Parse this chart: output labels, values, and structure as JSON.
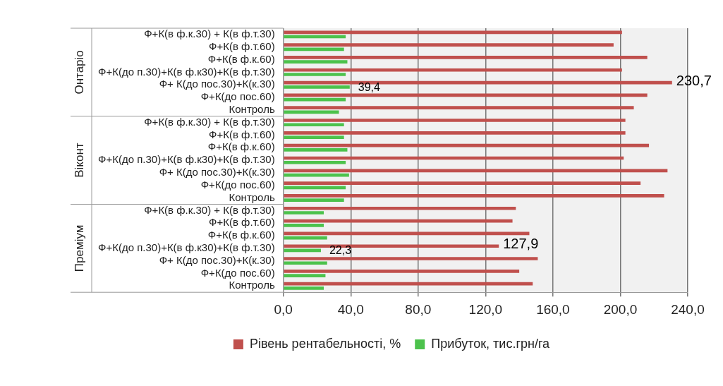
{
  "chart_data": {
    "type": "bar",
    "orientation": "horizontal",
    "categories": [
      "Ф+К(в ф.к.30) + К(в ф.т.30)",
      "Ф+К(в ф.т.60)",
      "Ф+К(в ф.к.60)",
      "Ф+К(до п.30)+К(в ф.к30)+К(в ф.т.30)",
      "Ф+ К(до пос.30)+К(к.30)",
      "Ф+К(до пос.60)",
      "Контроль",
      "Ф+К(в ф.к.30) + К(в ф.т.30)",
      "Ф+К(в ф.т.60)",
      "Ф+К(в ф.к.60)",
      "Ф+К(до п.30)+К(в ф.к30)+К(в ф.т.30)",
      "Ф+ К(до пос.30)+К(к.30)",
      "Ф+К(до пос.60)",
      "Контроль",
      "Ф+К(в ф.к.30) + К(в ф.т.30)",
      "Ф+К(в ф.т.60)",
      "Ф+К(в ф.к.60)",
      "Ф+К(до п.30)+К(в ф.к30)+К(в ф.т.30)",
      "Ф+ К(до пос.30)+К(к.30)",
      "Ф+К(до пос.60)",
      "Контроль"
    ],
    "series": [
      {
        "name": "Рівень рентабельності, %",
        "color": "#c0504d",
        "values": [
          201,
          196,
          216,
          201,
          230.7,
          216,
          208,
          203,
          203,
          217,
          202,
          228,
          212,
          226,
          138,
          136,
          146,
          127.9,
          151,
          140,
          148
        ],
        "value_labels": [
          null,
          null,
          null,
          null,
          "230,7",
          null,
          null,
          null,
          null,
          null,
          null,
          null,
          null,
          null,
          null,
          null,
          null,
          "127,9",
          null,
          null,
          null
        ]
      },
      {
        "name": "Прибуток, тис.грн/га",
        "color": "#4cc24c",
        "values": [
          37,
          36,
          38,
          37,
          39.4,
          37,
          33,
          36,
          36,
          38,
          37,
          39,
          37,
          36,
          24,
          24,
          26,
          22.3,
          26,
          25,
          24
        ],
        "value_labels": [
          null,
          null,
          null,
          null,
          "39,4",
          null,
          null,
          null,
          null,
          null,
          null,
          null,
          null,
          null,
          null,
          null,
          null,
          "22,3",
          null,
          null,
          null
        ]
      }
    ],
    "xlim": [
      0,
      240
    ],
    "xticks": [
      {
        "value": 0,
        "label": "0,0"
      },
      {
        "value": 40,
        "label": "40,0"
      },
      {
        "value": 80,
        "label": "80,0"
      },
      {
        "value": 120,
        "label": "120,0"
      },
      {
        "value": 160,
        "label": "160,0"
      },
      {
        "value": 200,
        "label": "200,0"
      },
      {
        "value": 240,
        "label": "240,0"
      }
    ],
    "grid": "x",
    "legend": "bottom",
    "annotations": [
      "Онтаріо",
      "Віконт",
      "Преміум"
    ]
  }
}
